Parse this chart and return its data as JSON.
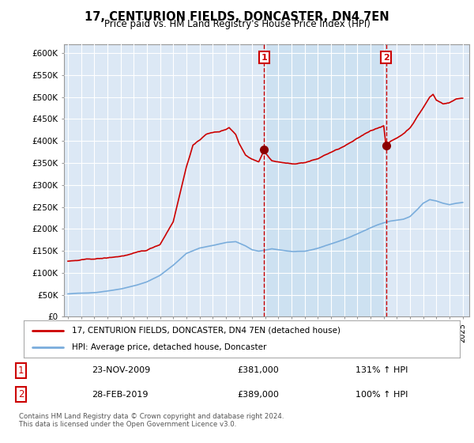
{
  "title": "17, CENTURION FIELDS, DONCASTER, DN4 7EN",
  "subtitle": "Price paid vs. HM Land Registry's House Price Index (HPI)",
  "house_color": "#cc0000",
  "hpi_color": "#7aaddc",
  "vline_color": "#cc0000",
  "background_color": "#dce8f5",
  "shaded_color": "#c8dff0",
  "grid_color": "#ffffff",
  "legend_label_house": "17, CENTURION FIELDS, DONCASTER, DN4 7EN (detached house)",
  "legend_label_hpi": "HPI: Average price, detached house, Doncaster",
  "event1_date_label": "23-NOV-2009",
  "event1_price_label": "£381,000",
  "event1_hpi_label": "131% ↑ HPI",
  "event1_year": 2009.9,
  "event1_price": 381000,
  "event2_date_label": "28-FEB-2019",
  "event2_price_label": "£389,000",
  "event2_hpi_label": "100% ↑ HPI",
  "event2_year": 2019.17,
  "event2_price": 389000,
  "footnote": "Contains HM Land Registry data © Crown copyright and database right 2024.\nThis data is licensed under the Open Government Licence v3.0.",
  "ylim": [
    0,
    620000
  ],
  "yticks": [
    0,
    50000,
    100000,
    150000,
    200000,
    250000,
    300000,
    350000,
    400000,
    450000,
    500000,
    550000,
    600000
  ],
  "ytick_labels": [
    "£0",
    "£50K",
    "£100K",
    "£150K",
    "£200K",
    "£250K",
    "£300K",
    "£350K",
    "£400K",
    "£450K",
    "£500K",
    "£550K",
    "£600K"
  ]
}
